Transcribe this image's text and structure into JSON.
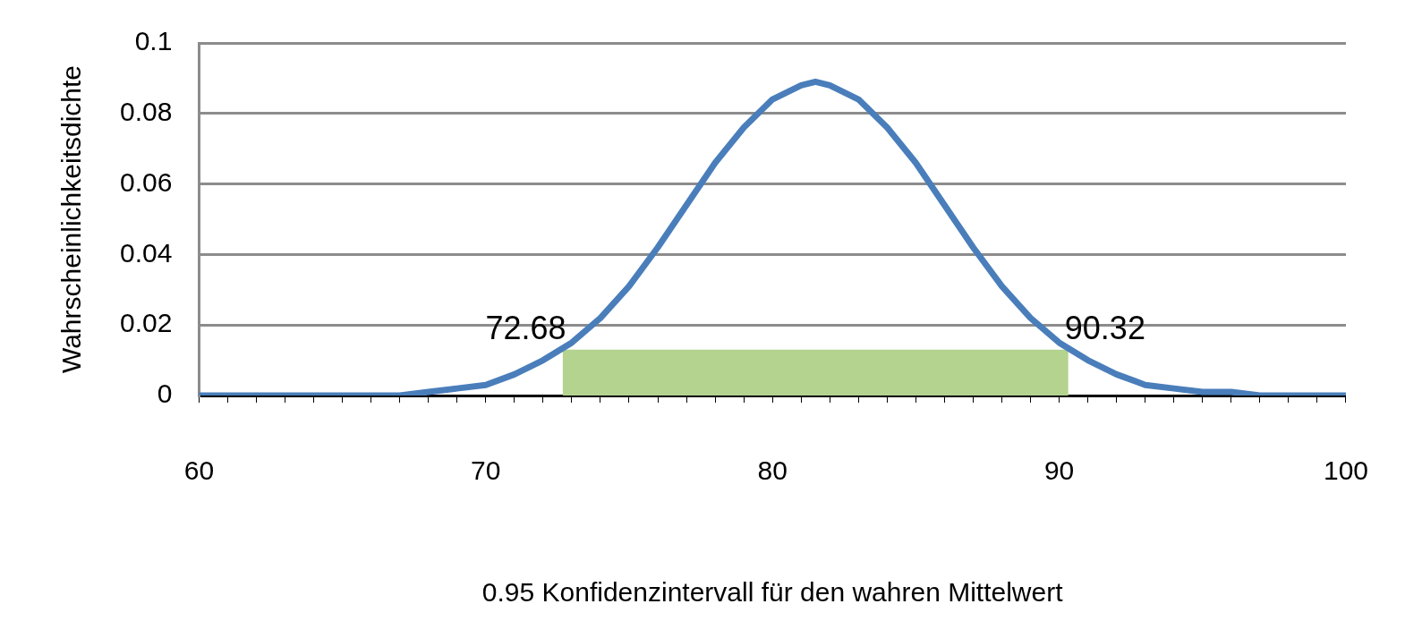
{
  "chart_data": {
    "type": "line",
    "xlabel": "0.95 Konfidenzintervall für den wahren Mittelwert",
    "ylabel": "Wahrscheinlichkeitsdichte",
    "series": [
      {
        "type": "area",
        "color": "#b3d38f",
        "x": [
          72.68,
          90.32
        ],
        "values": [
          0.013,
          0.013
        ]
      },
      {
        "type": "line",
        "color": "#4a7ebb",
        "x": [
          60,
          65,
          66,
          67,
          68,
          69,
          70,
          71,
          72,
          73,
          74,
          75,
          76,
          77,
          78,
          79,
          80,
          81,
          81.5,
          82,
          83,
          84,
          85,
          86,
          87,
          88,
          89,
          90,
          91,
          92,
          93,
          94,
          95,
          96,
          97,
          100
        ],
        "values": [
          0,
          0,
          0,
          0,
          0.001,
          0.002,
          0.003,
          0.006,
          0.01,
          0.015,
          0.022,
          0.031,
          0.042,
          0.054,
          0.066,
          0.076,
          0.084,
          0.088,
          0.089,
          0.088,
          0.084,
          0.076,
          0.066,
          0.054,
          0.042,
          0.031,
          0.022,
          0.015,
          0.01,
          0.006,
          0.003,
          0.002,
          0.001,
          0.001,
          0,
          0
        ]
      }
    ],
    "annotations": [
      {
        "text": "72.68",
        "x": 72.68,
        "y": 0.013
      },
      {
        "text": "90.32",
        "x": 90.32,
        "y": 0.013
      }
    ],
    "xlim": [
      60,
      100
    ],
    "ylim": [
      0,
      0.1
    ],
    "xticks": [
      60,
      {
        "value": 61,
        "label": null
      },
      {
        "value": 62,
        "label": null
      },
      {
        "value": 63,
        "label": null
      },
      {
        "value": 64,
        "label": null
      },
      {
        "value": 65,
        "label": null
      },
      {
        "value": 66,
        "label": null
      },
      {
        "value": 67,
        "label": null
      },
      {
        "value": 68,
        "label": null
      },
      {
        "value": 69,
        "label": null
      },
      70,
      {
        "value": 71,
        "label": null
      },
      {
        "value": 72,
        "label": null
      },
      {
        "value": 73,
        "label": null
      },
      {
        "value": 74,
        "label": null
      },
      {
        "value": 75,
        "label": null
      },
      {
        "value": 76,
        "label": null
      },
      {
        "value": 77,
        "label": null
      },
      {
        "value": 78,
        "label": null
      },
      {
        "value": 79,
        "label": null
      },
      80,
      {
        "value": 81,
        "label": null
      },
      {
        "value": 82,
        "label": null
      },
      {
        "value": 83,
        "label": null
      },
      {
        "value": 84,
        "label": null
      },
      {
        "value": 85,
        "label": null
      },
      {
        "value": 86,
        "label": null
      },
      {
        "value": 87,
        "label": null
      },
      {
        "value": 88,
        "label": null
      },
      {
        "value": 89,
        "label": null
      },
      90,
      {
        "value": 91,
        "label": null
      },
      {
        "value": 92,
        "label": null
      },
      {
        "value": 93,
        "label": null
      },
      {
        "value": 94,
        "label": null
      },
      {
        "value": 95,
        "label": null
      },
      {
        "value": 96,
        "label": null
      },
      {
        "value": 97,
        "label": null
      },
      {
        "value": 98,
        "label": null
      },
      {
        "value": 99,
        "label": null
      },
      100
    ],
    "yticks": [
      0,
      0.02,
      0.04,
      0.06,
      0.08,
      0.1
    ],
    "grid": "y",
    "legend": false,
    "marker": "none",
    "line_style": "solid"
  }
}
